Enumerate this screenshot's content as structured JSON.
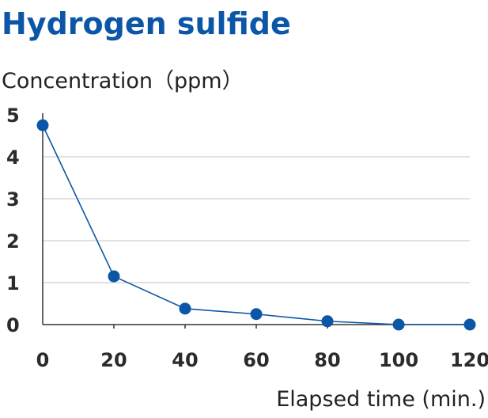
{
  "chart_data": {
    "type": "line",
    "title": "Hydrogen sulfide",
    "ylabel": "Concentration（ppm）",
    "xlabel": "Elapsed time (min.)",
    "x": [
      0,
      20,
      40,
      60,
      80,
      100,
      120
    ],
    "series": [
      {
        "values": [
          4.75,
          1.15,
          0.38,
          0.25,
          0.08,
          0.0,
          0.0
        ]
      }
    ],
    "xlim": [
      0,
      120
    ],
    "ylim": [
      0,
      5
    ],
    "xticks": [
      "0",
      "20",
      "40",
      "60",
      "80",
      "100",
      "120"
    ],
    "yticks": [
      "0",
      "1",
      "2",
      "3",
      "4",
      "5"
    ],
    "grid": true,
    "colors": {
      "series": "#0b56a6",
      "title": "#0b56a6",
      "grid": "#cfcfcf"
    }
  }
}
